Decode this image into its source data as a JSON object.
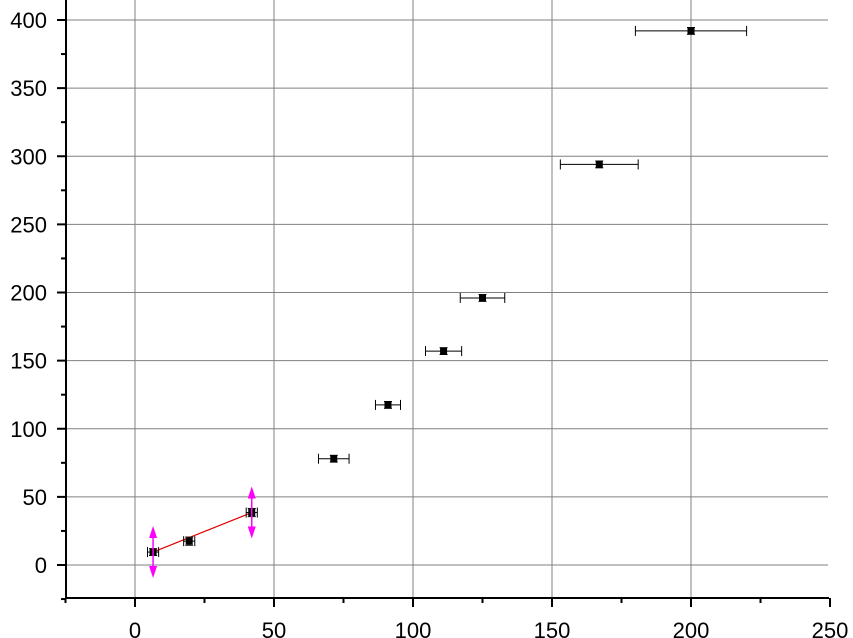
{
  "chart_data": {
    "type": "scatter",
    "title": "",
    "xlabel": "",
    "ylabel": "",
    "xlim": [
      -25,
      250
    ],
    "ylim": [
      -25,
      410
    ],
    "grid": true,
    "x_ticks": [
      0,
      50,
      100,
      150,
      200,
      250
    ],
    "y_ticks": [
      0,
      50,
      100,
      150,
      200,
      250,
      300,
      350,
      400
    ],
    "x_tick_labels": [
      "0",
      "50",
      "100",
      "150",
      "200",
      "250"
    ],
    "y_tick_labels": [
      "0",
      "50",
      "100",
      "150",
      "200",
      "250",
      "300",
      "350",
      "400"
    ],
    "series": [
      {
        "points": [
          {
            "x": 6.5,
            "y": 9.5,
            "xerr": 2.0,
            "yerr": 2.5
          },
          {
            "x": 19.5,
            "y": 17.5,
            "xerr": 2.0,
            "yerr": 3.0
          },
          {
            "x": 42.0,
            "y": 38.5,
            "xerr": 2.0,
            "yerr": 3.0
          },
          {
            "x": 71.5,
            "y": 78.0,
            "xerr": 5.5,
            "yerr": 2.5
          },
          {
            "x": 91.0,
            "y": 117.5,
            "xerr": 4.5,
            "yerr": 2.5
          },
          {
            "x": 111.0,
            "y": 157.0,
            "xerr": 6.5,
            "yerr": 2.5
          },
          {
            "x": 125.0,
            "y": 196.0,
            "xerr": 8.0,
            "yerr": 2.5
          },
          {
            "x": 167.0,
            "y": 294.0,
            "xerr": 14.0,
            "yerr": 2.5
          },
          {
            "x": 200.0,
            "y": 392.0,
            "xerr": 20.0,
            "yerr": 2.5
          }
        ]
      }
    ],
    "fit_line": {
      "x": [
        6.5,
        42.0
      ],
      "y": [
        9.5,
        38.5
      ],
      "color": "#e00000"
    },
    "range_markers": {
      "x": [
        6.5,
        42.0
      ],
      "y": [
        9.5,
        38.5
      ],
      "color": "#ff00ff"
    },
    "colors": {
      "grid": "#808080",
      "points": "#000000",
      "fit": "#e00000",
      "markers": "#ff00ff"
    }
  }
}
